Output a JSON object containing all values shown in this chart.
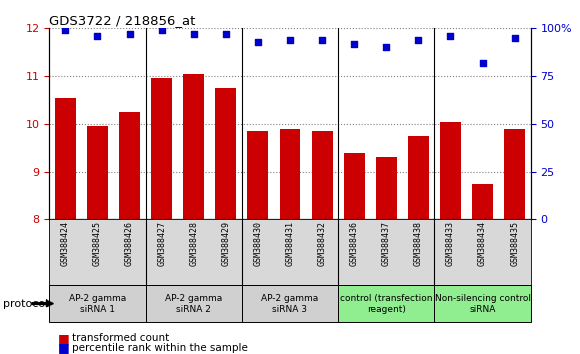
{
  "title": "GDS3722 / 218856_at",
  "samples": [
    "GSM388424",
    "GSM388425",
    "GSM388426",
    "GSM388427",
    "GSM388428",
    "GSM388429",
    "GSM388430",
    "GSM388431",
    "GSM388432",
    "GSM388436",
    "GSM388437",
    "GSM388438",
    "GSM388433",
    "GSM388434",
    "GSM388435"
  ],
  "bar_values": [
    10.55,
    9.95,
    10.25,
    10.95,
    11.05,
    10.75,
    9.85,
    9.9,
    9.85,
    9.4,
    9.3,
    9.75,
    10.05,
    8.75,
    9.9
  ],
  "dot_values": [
    99,
    96,
    97,
    99,
    97,
    97,
    93,
    94,
    94,
    92,
    90,
    94,
    96,
    82,
    95
  ],
  "bar_color": "#cc0000",
  "dot_color": "#0000cc",
  "ylim_left": [
    8,
    12
  ],
  "ylim_right": [
    0,
    100
  ],
  "yticks_left": [
    8,
    9,
    10,
    11,
    12
  ],
  "ytick_labels_right": [
    "0",
    "25",
    "50",
    "75",
    "100%"
  ],
  "groups": [
    {
      "label": "AP-2 gamma\nsiRNA 1",
      "start": 0,
      "end": 3,
      "color": "#d0d0d0"
    },
    {
      "label": "AP-2 gamma\nsiRNA 2",
      "start": 3,
      "end": 6,
      "color": "#d0d0d0"
    },
    {
      "label": "AP-2 gamma\nsiRNA 3",
      "start": 6,
      "end": 9,
      "color": "#d0d0d0"
    },
    {
      "label": "control (transfection\nreagent)",
      "start": 9,
      "end": 12,
      "color": "#90ee90"
    },
    {
      "label": "Non-silencing control\nsiRNA",
      "start": 12,
      "end": 15,
      "color": "#90ee90"
    }
  ],
  "protocol_label": "protocol",
  "legend_bar": "transformed count",
  "legend_dot": "percentile rank within the sample",
  "bar_color_hex": "#cc0000",
  "dot_color_hex": "#0000cc",
  "tick_color_left": "#cc0000",
  "tick_color_right": "#0000cc",
  "group_boundaries": [
    3,
    6,
    9,
    12
  ]
}
